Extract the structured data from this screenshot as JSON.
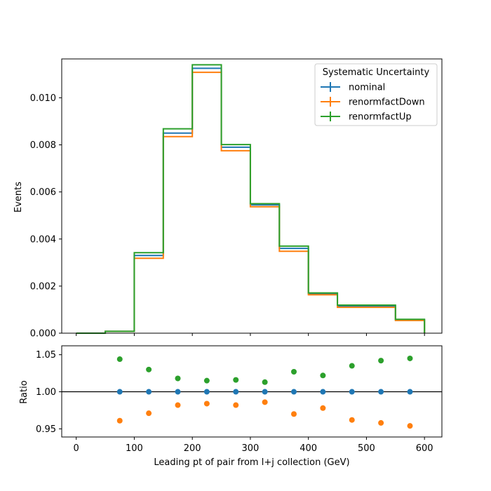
{
  "chart_data": [
    {
      "type": "step",
      "title": "",
      "xlabel": "",
      "ylabel": "Events",
      "xlim": [
        -25,
        630
      ],
      "ylim": [
        0,
        0.01165
      ],
      "yticks": [
        0.0,
        0.002,
        0.004,
        0.006,
        0.008,
        0.01
      ],
      "ytick_labels": [
        "0.000",
        "0.002",
        "0.004",
        "0.006",
        "0.008",
        "0.010"
      ],
      "xticks": [
        0,
        100,
        200,
        300,
        400,
        500,
        600
      ],
      "bin_edges": [
        0,
        50,
        100,
        150,
        200,
        250,
        300,
        350,
        400,
        450,
        500,
        550,
        600
      ],
      "series": [
        {
          "name": "nominal",
          "color": "#1f77b4",
          "values": [
            0.0,
            8e-05,
            0.0033,
            0.0085,
            0.01125,
            0.0079,
            0.00545,
            0.0036,
            0.00168,
            0.00115,
            0.00115,
            0.00057
          ]
        },
        {
          "name": "renormfactDown",
          "color": "#ff7f0e",
          "values": [
            0.0,
            8e-05,
            0.00318,
            0.00835,
            0.01108,
            0.00775,
            0.00537,
            0.00348,
            0.00163,
            0.0011,
            0.0011,
            0.00054
          ]
        },
        {
          "name": "renormfactUp",
          "color": "#2ca02c",
          "values": [
            0.0,
            8e-05,
            0.00342,
            0.00868,
            0.0114,
            0.00801,
            0.0055,
            0.0037,
            0.00171,
            0.00119,
            0.00119,
            0.00059
          ]
        }
      ],
      "legend": {
        "title": "Systematic Uncertainty",
        "position": "top-right"
      }
    },
    {
      "type": "scatter",
      "title": "",
      "xlabel": "Leading pt of pair from l+j collection (GeV)",
      "ylabel": "Ratio",
      "xlim": [
        -25,
        630
      ],
      "ylim": [
        0.939,
        1.062
      ],
      "yticks": [
        0.95,
        1.0,
        1.05
      ],
      "ytick_labels": [
        "0.95",
        "1.00",
        "1.05"
      ],
      "xticks": [
        0,
        100,
        200,
        300,
        400,
        500,
        600
      ],
      "xtick_labels": [
        "0",
        "100",
        "200",
        "300",
        "400",
        "500",
        "600"
      ],
      "reference_line": 1.0,
      "x": [
        75,
        125,
        175,
        225,
        275,
        325,
        375,
        425,
        475,
        525,
        575
      ],
      "series": [
        {
          "name": "nominal",
          "color": "#1f77b4",
          "values": [
            1.0,
            1.0,
            1.0,
            1.0,
            1.0,
            1.0,
            1.0,
            1.0,
            1.0,
            1.0,
            1.0
          ]
        },
        {
          "name": "renormfactDown",
          "color": "#ff7f0e",
          "values": [
            0.961,
            0.971,
            0.982,
            0.984,
            0.982,
            0.986,
            0.97,
            0.978,
            0.962,
            0.958,
            0.954
          ]
        },
        {
          "name": "renormfactUp",
          "color": "#2ca02c",
          "values": [
            1.044,
            1.03,
            1.018,
            1.015,
            1.016,
            1.013,
            1.027,
            1.022,
            1.035,
            1.042,
            1.045
          ]
        }
      ]
    }
  ]
}
